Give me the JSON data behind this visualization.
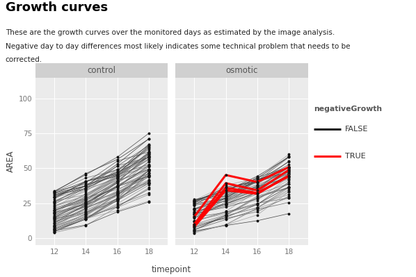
{
  "title": "Growth curves",
  "subtitle_line1": "These are the growth curves over the monitored days as estimated by the image analysis.",
  "subtitle_line2": "Negative day to day differences most likely indicates some technical problem that needs to be",
  "subtitle_line3": "corrected.",
  "panel_labels": [
    "control",
    "osmotic"
  ],
  "timepoints": [
    12,
    14,
    16,
    18
  ],
  "xlabel": "timepoint",
  "ylabel": "AREA",
  "ylim": [
    -5,
    115
  ],
  "yticks": [
    0,
    25,
    50,
    75,
    100
  ],
  "bg_color": "#EBEBEB",
  "grid_color": "#FFFFFF",
  "false_color": "#1a1a1a",
  "true_color": "#FF0000",
  "legend_title": "negativeGrowth",
  "panel_label_bg": "#D0D0D0",
  "control_false_seeds": 65,
  "osmotic_false_seeds": 45,
  "osmotic_true_seeds": 4,
  "seed": 7
}
